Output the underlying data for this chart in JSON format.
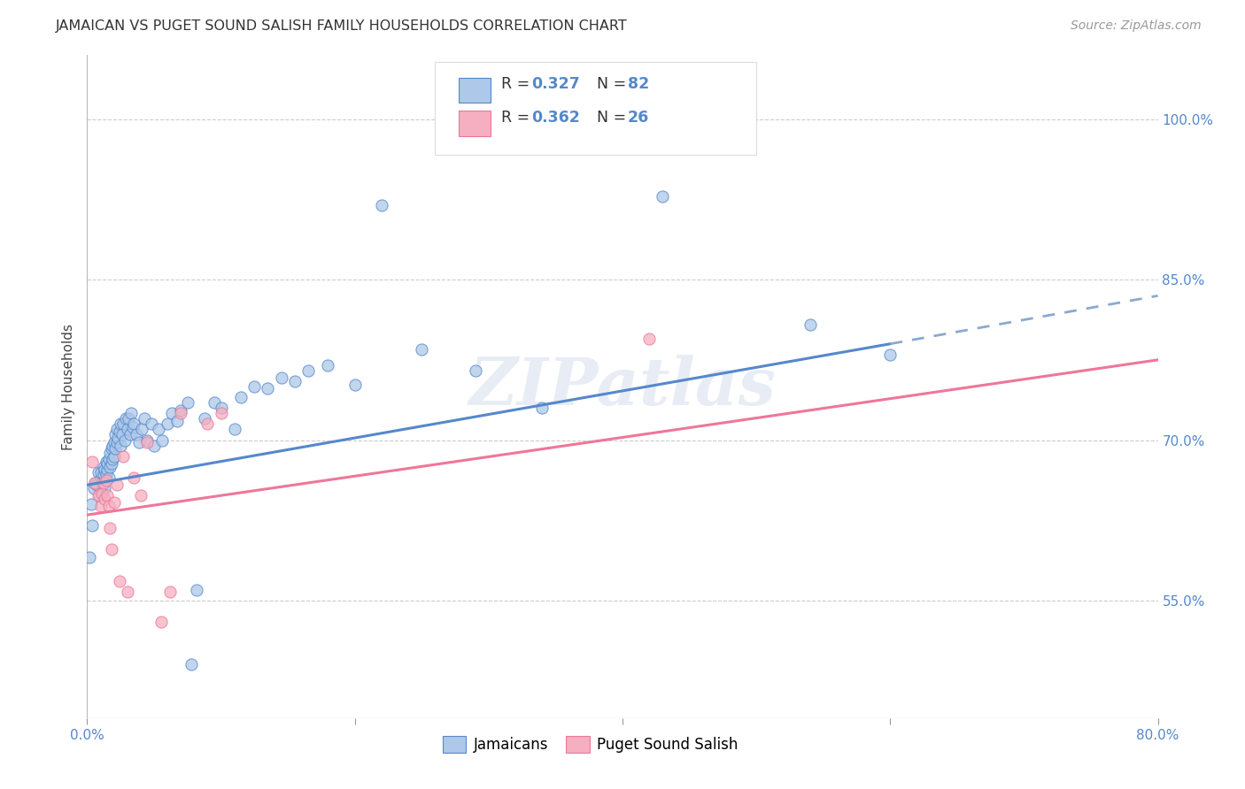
{
  "title": "JAMAICAN VS PUGET SOUND SALISH FAMILY HOUSEHOLDS CORRELATION CHART",
  "source": "Source: ZipAtlas.com",
  "ylabel": "Family Households",
  "ytick_vals": [
    0.55,
    0.7,
    0.85,
    1.0
  ],
  "ytick_labels": [
    "55.0%",
    "70.0%",
    "85.0%",
    "100.0%"
  ],
  "xlim": [
    0.0,
    0.8
  ],
  "ylim": [
    0.44,
    1.06
  ],
  "blue_color": "#adc8e8",
  "pink_color": "#f5afc0",
  "line_blue": "#5588cc",
  "line_pink": "#ee7799",
  "line_blue_dash": "#88aad0",
  "watermark": "ZIPatlas",
  "jamaicans_x": [
    0.003,
    0.004,
    0.005,
    0.006,
    0.007,
    0.008,
    0.009,
    0.01,
    0.01,
    0.011,
    0.012,
    0.012,
    0.013,
    0.013,
    0.014,
    0.014,
    0.015,
    0.015,
    0.016,
    0.016,
    0.017,
    0.017,
    0.018,
    0.018,
    0.019,
    0.019,
    0.02,
    0.02,
    0.021,
    0.021,
    0.022,
    0.022,
    0.023,
    0.024,
    0.025,
    0.025,
    0.026,
    0.027,
    0.028,
    0.029,
    0.03,
    0.031,
    0.032,
    0.033,
    0.034,
    0.035,
    0.037,
    0.039,
    0.041,
    0.043,
    0.045,
    0.048,
    0.05,
    0.053,
    0.056,
    0.06,
    0.063,
    0.067,
    0.07,
    0.075,
    0.078,
    0.082,
    0.088,
    0.095,
    0.1,
    0.11,
    0.115,
    0.125,
    0.135,
    0.145,
    0.155,
    0.165,
    0.18,
    0.2,
    0.22,
    0.25,
    0.29,
    0.34,
    0.43,
    0.54,
    0.6,
    0.002
  ],
  "jamaicans_y": [
    0.64,
    0.62,
    0.655,
    0.66,
    0.658,
    0.67,
    0.648,
    0.665,
    0.67,
    0.66,
    0.668,
    0.675,
    0.655,
    0.672,
    0.668,
    0.68,
    0.672,
    0.678,
    0.665,
    0.682,
    0.675,
    0.688,
    0.678,
    0.692,
    0.682,
    0.695,
    0.685,
    0.698,
    0.692,
    0.705,
    0.698,
    0.71,
    0.702,
    0.708,
    0.695,
    0.715,
    0.705,
    0.715,
    0.7,
    0.72,
    0.71,
    0.72,
    0.705,
    0.725,
    0.712,
    0.715,
    0.705,
    0.698,
    0.71,
    0.72,
    0.7,
    0.715,
    0.695,
    0.71,
    0.7,
    0.715,
    0.725,
    0.718,
    0.728,
    0.735,
    0.49,
    0.56,
    0.72,
    0.735,
    0.73,
    0.71,
    0.74,
    0.75,
    0.748,
    0.758,
    0.755,
    0.765,
    0.77,
    0.752,
    0.92,
    0.785,
    0.765,
    0.73,
    0.928,
    0.808,
    0.78,
    0.59
  ],
  "salish_x": [
    0.004,
    0.006,
    0.008,
    0.01,
    0.011,
    0.012,
    0.013,
    0.014,
    0.015,
    0.016,
    0.017,
    0.018,
    0.02,
    0.022,
    0.024,
    0.027,
    0.03,
    0.035,
    0.04,
    0.045,
    0.055,
    0.062,
    0.07,
    0.09,
    0.1,
    0.42
  ],
  "salish_y": [
    0.68,
    0.66,
    0.648,
    0.638,
    0.65,
    0.66,
    0.645,
    0.662,
    0.648,
    0.638,
    0.618,
    0.598,
    0.642,
    0.658,
    0.568,
    0.685,
    0.558,
    0.665,
    0.648,
    0.698,
    0.53,
    0.558,
    0.725,
    0.715,
    0.725,
    0.795
  ],
  "blue_line_x0": 0.0,
  "blue_line_x1": 0.6,
  "blue_line_x2": 0.8,
  "blue_line_y_at_0": 0.658,
  "blue_line_y_at_60": 0.79,
  "blue_line_y_at_80": 0.835,
  "pink_line_y_at_0": 0.63,
  "pink_line_y_at_80": 0.775
}
